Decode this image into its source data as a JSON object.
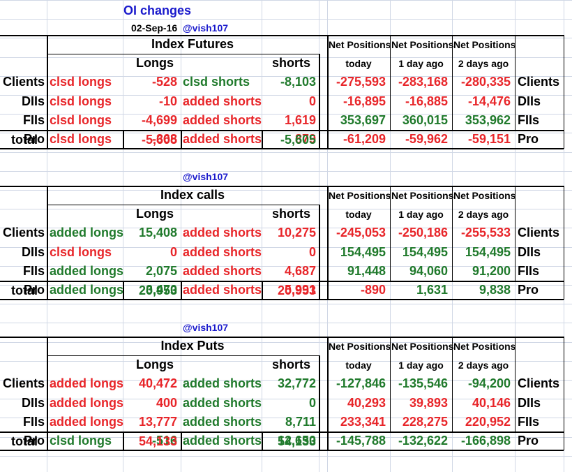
{
  "title": "OI changes",
  "date": "02-Sep-16",
  "handle": "@vish107",
  "net_header": "Net Positions",
  "period_headers": [
    "today",
    "1 day ago",
    "2 days ago"
  ],
  "longs_label": "Longs",
  "shorts_label": "shorts",
  "total_label": "total",
  "sections": [
    {
      "name": "Index Futures",
      "handle": "",
      "rows": [
        {
          "cat": "Clients",
          "long_label": "clsd longs",
          "long_color": "red",
          "long_value": "-528",
          "short_label": "clsd shorts",
          "short_color": "green",
          "short_value": "-8,103",
          "net": [
            {
              "v": "-275,593",
              "c": "red"
            },
            {
              "v": "-283,168",
              "c": "red"
            },
            {
              "v": "-280,335",
              "c": "red"
            }
          ]
        },
        {
          "cat": "DIIs",
          "long_label": "clsd longs",
          "long_color": "red",
          "long_value": "-10",
          "short_label": "added shorts",
          "short_color": "red",
          "short_value": "0",
          "net": [
            {
              "v": "-16,895",
              "c": "red"
            },
            {
              "v": "-16,885",
              "c": "red"
            },
            {
              "v": "-14,476",
              "c": "red"
            }
          ]
        },
        {
          "cat": "FIIs",
          "long_label": "clsd longs",
          "long_color": "red",
          "long_value": "-4,699",
          "short_label": "added shorts",
          "short_color": "red",
          "short_value": "1,619",
          "net": [
            {
              "v": "353,697",
              "c": "green"
            },
            {
              "v": "360,015",
              "c": "green"
            },
            {
              "v": "353,962",
              "c": "green"
            }
          ]
        },
        {
          "cat": "Pro",
          "long_label": "clsd longs",
          "long_color": "red",
          "long_value": "-368",
          "short_label": "added shorts",
          "short_color": "red",
          "short_value": "879",
          "net": [
            {
              "v": "-61,209",
              "c": "red"
            },
            {
              "v": "-59,962",
              "c": "red"
            },
            {
              "v": "-59,151",
              "c": "red"
            }
          ]
        }
      ],
      "total_longs": {
        "v": "-5,605",
        "c": "red"
      },
      "total_shorts": {
        "v": "-5,605",
        "c": "green"
      }
    },
    {
      "name": "Index calls",
      "handle": "@vish107",
      "rows": [
        {
          "cat": "Clients",
          "long_label": "added longs",
          "long_color": "green",
          "long_value": "15,408",
          "short_label": "added shorts",
          "short_color": "red",
          "short_value": "10,275",
          "net": [
            {
              "v": "-245,053",
              "c": "red"
            },
            {
              "v": "-250,186",
              "c": "red"
            },
            {
              "v": "-255,533",
              "c": "red"
            }
          ]
        },
        {
          "cat": "DIIs",
          "long_label": "clsd longs",
          "long_color": "red",
          "long_value": "0",
          "short_label": "added shorts",
          "short_color": "red",
          "short_value": "0",
          "net": [
            {
              "v": "154,495",
              "c": "green"
            },
            {
              "v": "154,495",
              "c": "green"
            },
            {
              "v": "154,495",
              "c": "green"
            }
          ]
        },
        {
          "cat": "FIIs",
          "long_label": "added longs",
          "long_color": "green",
          "long_value": "2,075",
          "short_label": "added shorts",
          "short_color": "red",
          "short_value": "4,687",
          "net": [
            {
              "v": "91,448",
              "c": "green"
            },
            {
              "v": "94,060",
              "c": "green"
            },
            {
              "v": "91,200",
              "c": "green"
            }
          ]
        },
        {
          "cat": "Pro",
          "long_label": "added longs",
          "long_color": "green",
          "long_value": "3,470",
          "short_label": "added shorts",
          "short_color": "red",
          "short_value": "5,991",
          "net": [
            {
              "v": "-890",
              "c": "red"
            },
            {
              "v": "1,631",
              "c": "green"
            },
            {
              "v": "9,838",
              "c": "green"
            }
          ]
        }
      ],
      "total_longs": {
        "v": "20,953",
        "c": "green"
      },
      "total_shorts": {
        "v": "20,953",
        "c": "red"
      }
    },
    {
      "name": "Index Puts",
      "handle": "@vish107",
      "rows": [
        {
          "cat": "Clients",
          "long_label": "added longs",
          "long_color": "red",
          "long_value": "40,472",
          "short_label": "added shorts",
          "short_color": "green",
          "short_value": "32,772",
          "net": [
            {
              "v": "-127,846",
              "c": "green"
            },
            {
              "v": "-135,546",
              "c": "green"
            },
            {
              "v": "-94,200",
              "c": "green"
            }
          ]
        },
        {
          "cat": "DIIs",
          "long_label": "added longs",
          "long_color": "red",
          "long_value": "400",
          "short_label": "added shorts",
          "short_color": "green",
          "short_value": "0",
          "net": [
            {
              "v": "40,293",
              "c": "red"
            },
            {
              "v": "39,893",
              "c": "red"
            },
            {
              "v": "40,146",
              "c": "red"
            }
          ]
        },
        {
          "cat": "FIIs",
          "long_label": "added longs",
          "long_color": "red",
          "long_value": "13,777",
          "short_label": "added shorts",
          "short_color": "green",
          "short_value": "8,711",
          "net": [
            {
              "v": "233,341",
              "c": "red"
            },
            {
              "v": "228,275",
              "c": "red"
            },
            {
              "v": "220,952",
              "c": "red"
            }
          ]
        },
        {
          "cat": "Pro",
          "long_label": "clsd longs",
          "long_color": "green",
          "long_value": "-516",
          "short_label": "added shorts",
          "short_color": "green",
          "short_value": "12,650",
          "net": [
            {
              "v": "-145,788",
              "c": "green"
            },
            {
              "v": "-132,622",
              "c": "green"
            },
            {
              "v": "-166,898",
              "c": "green"
            }
          ]
        }
      ],
      "total_longs": {
        "v": "54,133",
        "c": "red"
      },
      "total_shorts": {
        "v": "54,133",
        "c": "green"
      }
    }
  ],
  "colors": {
    "red": "#e8262a",
    "green": "#207a2c",
    "blue": "#1a1acc",
    "grid": "#d0d7e5"
  }
}
